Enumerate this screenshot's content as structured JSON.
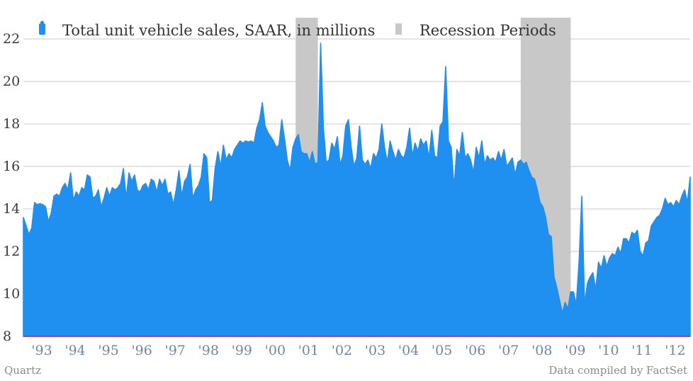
{
  "chart_data": {
    "type": "area",
    "title": "",
    "xlabel": "",
    "ylabel": "",
    "ylim": [
      8,
      23
    ],
    "yticks": [
      8,
      10,
      12,
      14,
      16,
      18,
      20,
      22
    ],
    "x_tick_labels": [
      "'93",
      "'94",
      "'95",
      "'96",
      "'97",
      "'98",
      "'99",
      "'00",
      "'01",
      "'02",
      "'03",
      "'04",
      "'05",
      "'06",
      "'07",
      "'08",
      "'09",
      "'10",
      "'11",
      "'12"
    ],
    "x_start": "1993-01",
    "grid": true,
    "legend_placement": "top-left",
    "series": [
      {
        "name": "Total unit vehicle sales, SAAR, in millions",
        "color": "#1f8ff0",
        "values": [
          13.6,
          13.2,
          12.8,
          13.1,
          14.3,
          14.2,
          14.25,
          14.2,
          14.1,
          13.4,
          13.8,
          14.6,
          14.7,
          14.6,
          15.0,
          15.2,
          14.9,
          15.7,
          14.4,
          14.8,
          14.6,
          15.0,
          14.9,
          15.6,
          15.5,
          14.5,
          14.6,
          14.9,
          14.1,
          14.5,
          15.0,
          14.6,
          15.0,
          14.9,
          15.0,
          15.2,
          15.9,
          14.5,
          15.7,
          15.3,
          15.6,
          14.9,
          14.8,
          15.1,
          15.2,
          14.9,
          15.4,
          15.3,
          14.8,
          15.4,
          15.1,
          15.4,
          14.7,
          14.8,
          14.2,
          14.9,
          15.8,
          14.6,
          15.3,
          15.5,
          16.1,
          14.5,
          14.9,
          15.1,
          15.5,
          16.6,
          16.4,
          14.3,
          14.4,
          15.9,
          16.7,
          16.0,
          17.0,
          16.3,
          16.6,
          16.4,
          16.8,
          17.0,
          17.2,
          17.1,
          17.2,
          17.15,
          17.2,
          17.1,
          17.8,
          18.2,
          19.0,
          17.9,
          17.6,
          17.4,
          17.2,
          16.9,
          17.0,
          18.2,
          17.3,
          16.3,
          15.8,
          16.9,
          17.3,
          17.5,
          16.7,
          16.6,
          16.6,
          16.2,
          16.7,
          16.1,
          16.2,
          21.8,
          17.8,
          16.2,
          16.3,
          17.1,
          16.8,
          17.4,
          16.1,
          16.5,
          17.9,
          18.2,
          16.9,
          16.0,
          16.4,
          17.9,
          16.3,
          16.1,
          16.3,
          15.9,
          16.6,
          16.4,
          16.8,
          18.0,
          16.9,
          16.2,
          17.2,
          16.7,
          16.3,
          16.8,
          16.5,
          16.4,
          16.9,
          17.8,
          16.5,
          17.1,
          16.7,
          17.3,
          17.0,
          17.2,
          16.4,
          17.7,
          16.5,
          16.4,
          17.9,
          18.1,
          20.7,
          17.2,
          16.9,
          15.0,
          16.8,
          16.5,
          17.6,
          16.4,
          16.6,
          16.3,
          15.7,
          16.9,
          16.4,
          17.2,
          16.1,
          16.5,
          16.3,
          16.4,
          16.2,
          16.7,
          16.3,
          16.8,
          16.0,
          16.2,
          16.4,
          15.6,
          16.2,
          16.3,
          16.1,
          16.2,
          15.8,
          15.5,
          15.4,
          14.9,
          14.3,
          14.1,
          13.6,
          12.8,
          12.7,
          10.8,
          10.3,
          9.7,
          9.1,
          9.6,
          9.3,
          10.1,
          10.1,
          9.5,
          11.5,
          14.6,
          9.5,
          10.5,
          10.8,
          11.0,
          10.2,
          11.5,
          11.2,
          11.8,
          11.3,
          11.7,
          11.9,
          11.8,
          12.2,
          11.9,
          12.6,
          12.6,
          12.4,
          12.9,
          12.8,
          13.0,
          12.0,
          11.8,
          12.4,
          12.5,
          13.2,
          13.4,
          13.6,
          13.7,
          14.0,
          14.5,
          14.2,
          14.3,
          14.1,
          14.4,
          14.2,
          14.6,
          14.9,
          14.3,
          15.5
        ]
      },
      {
        "name": "Recession Periods",
        "color": "#c8c8c8",
        "periods": [
          {
            "start": "2001-03",
            "end": "2001-11"
          },
          {
            "start": "2007-12",
            "end": "2009-06"
          }
        ]
      }
    ],
    "sources": {
      "left": "Quartz",
      "right": "Data compiled by FactSet"
    }
  }
}
